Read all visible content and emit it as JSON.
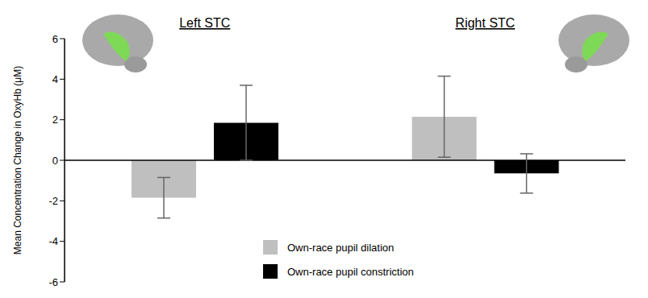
{
  "chart_data": {
    "type": "bar",
    "categories": [
      "Left STC",
      "Right STC"
    ],
    "series": [
      {
        "name": "Own-race pupil dilation",
        "color": "#bfbfbf",
        "values": [
          -1.85,
          2.15
        ],
        "errors": [
          1.0,
          2.0
        ]
      },
      {
        "name": "Own-race pupil constriction",
        "color": "#000000",
        "values": [
          1.85,
          -0.65
        ],
        "errors": [
          1.85,
          0.97
        ]
      }
    ],
    "ylabel": "Mean Concentration Change in OxyHb (μM)",
    "ylim": [
      -6,
      6
    ],
    "yticks": [
      -6,
      -4,
      -2,
      0,
      2,
      4,
      6
    ],
    "grid": false,
    "legend": "bottom"
  }
}
